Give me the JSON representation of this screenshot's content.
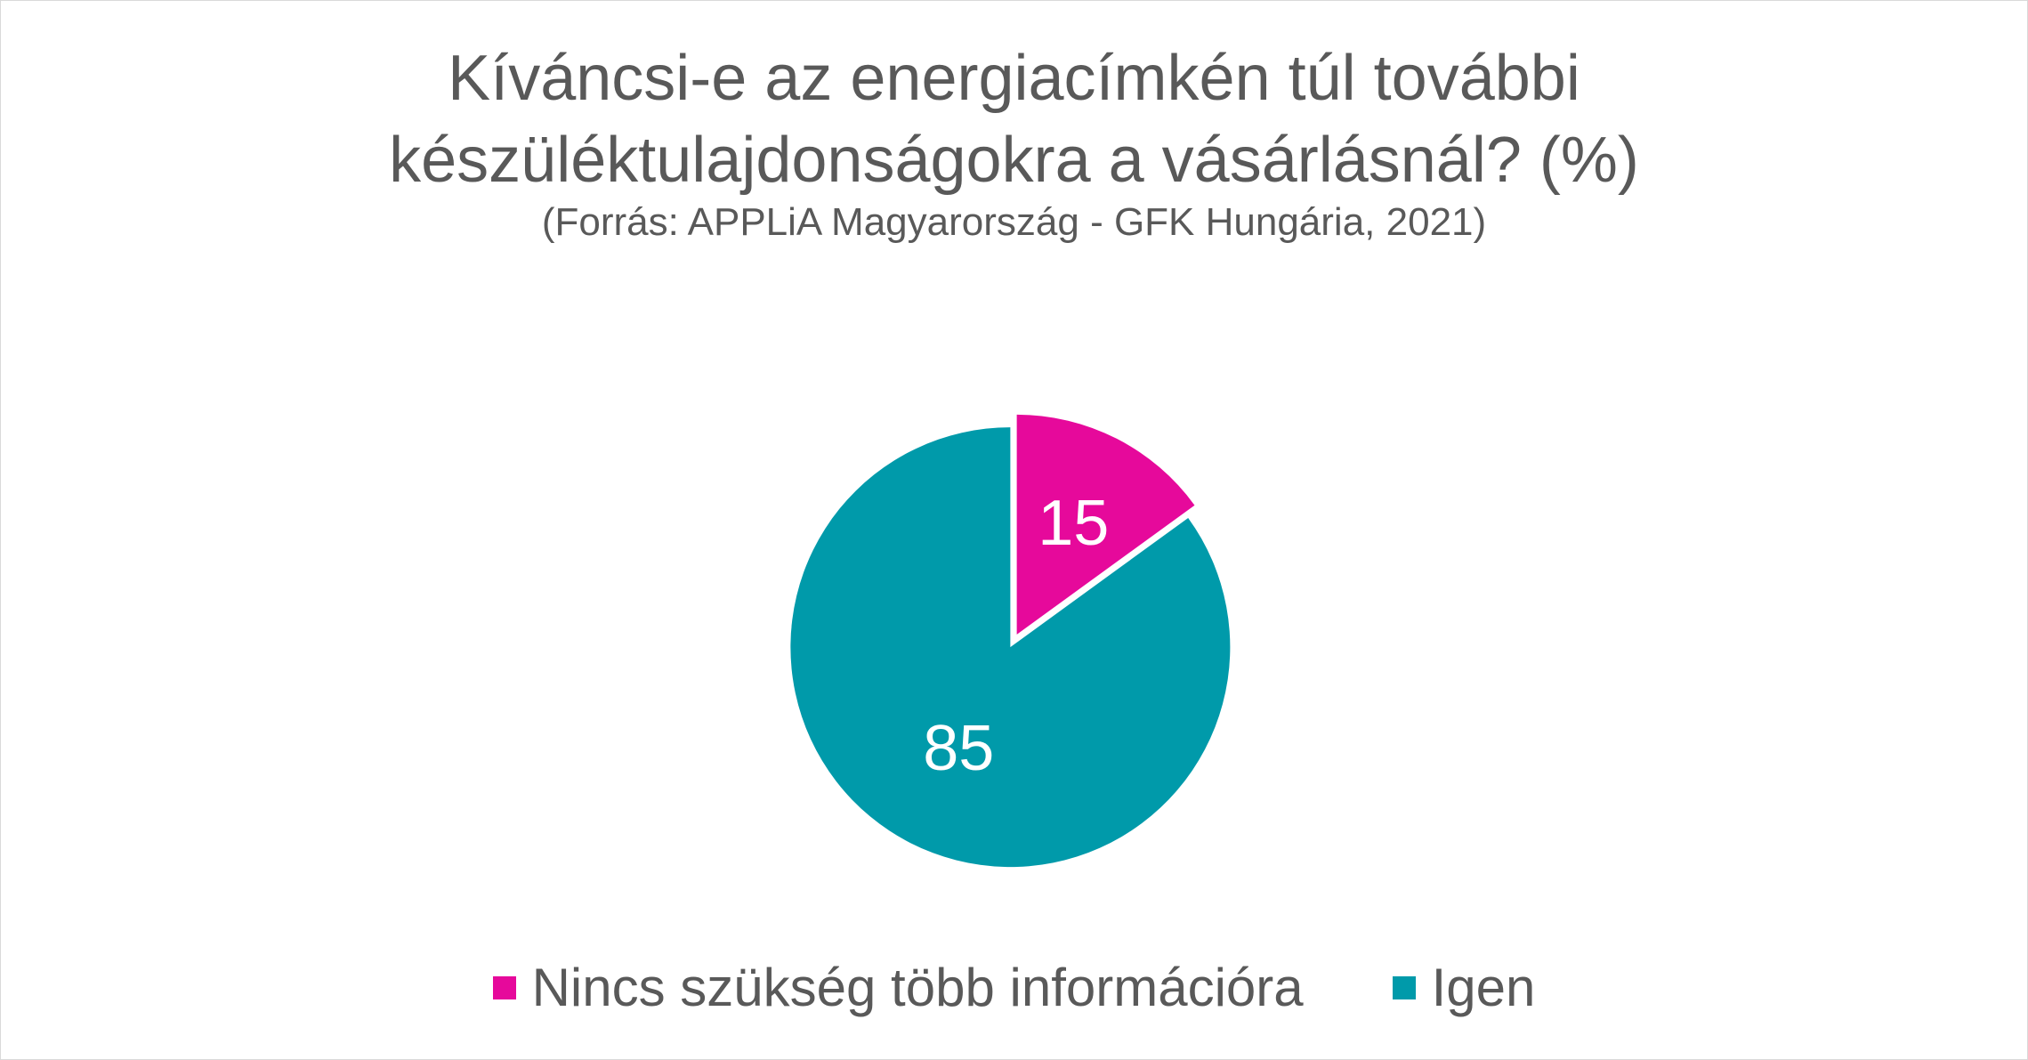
{
  "chart_data": {
    "type": "pie",
    "title_lines": [
      "Kíváncsi-e az energiacímkén túl további",
      "készüléktulajdonságokra a vásárlásnál? (%)"
    ],
    "subtitle": "(Forrás: APPLiA Magyarország - GFK Hungária, 2021)",
    "slices": [
      {
        "label": "Nincs szükség több információra",
        "value": 15,
        "value_label": "15",
        "color": "#e6099b"
      },
      {
        "label": "Igen",
        "value": 85,
        "value_label": "85",
        "color": "#009aaa"
      }
    ],
    "start_angle_deg": 0,
    "direction": "clockwise",
    "legend_position": "bottom",
    "data_label_color": "#ffffff"
  }
}
